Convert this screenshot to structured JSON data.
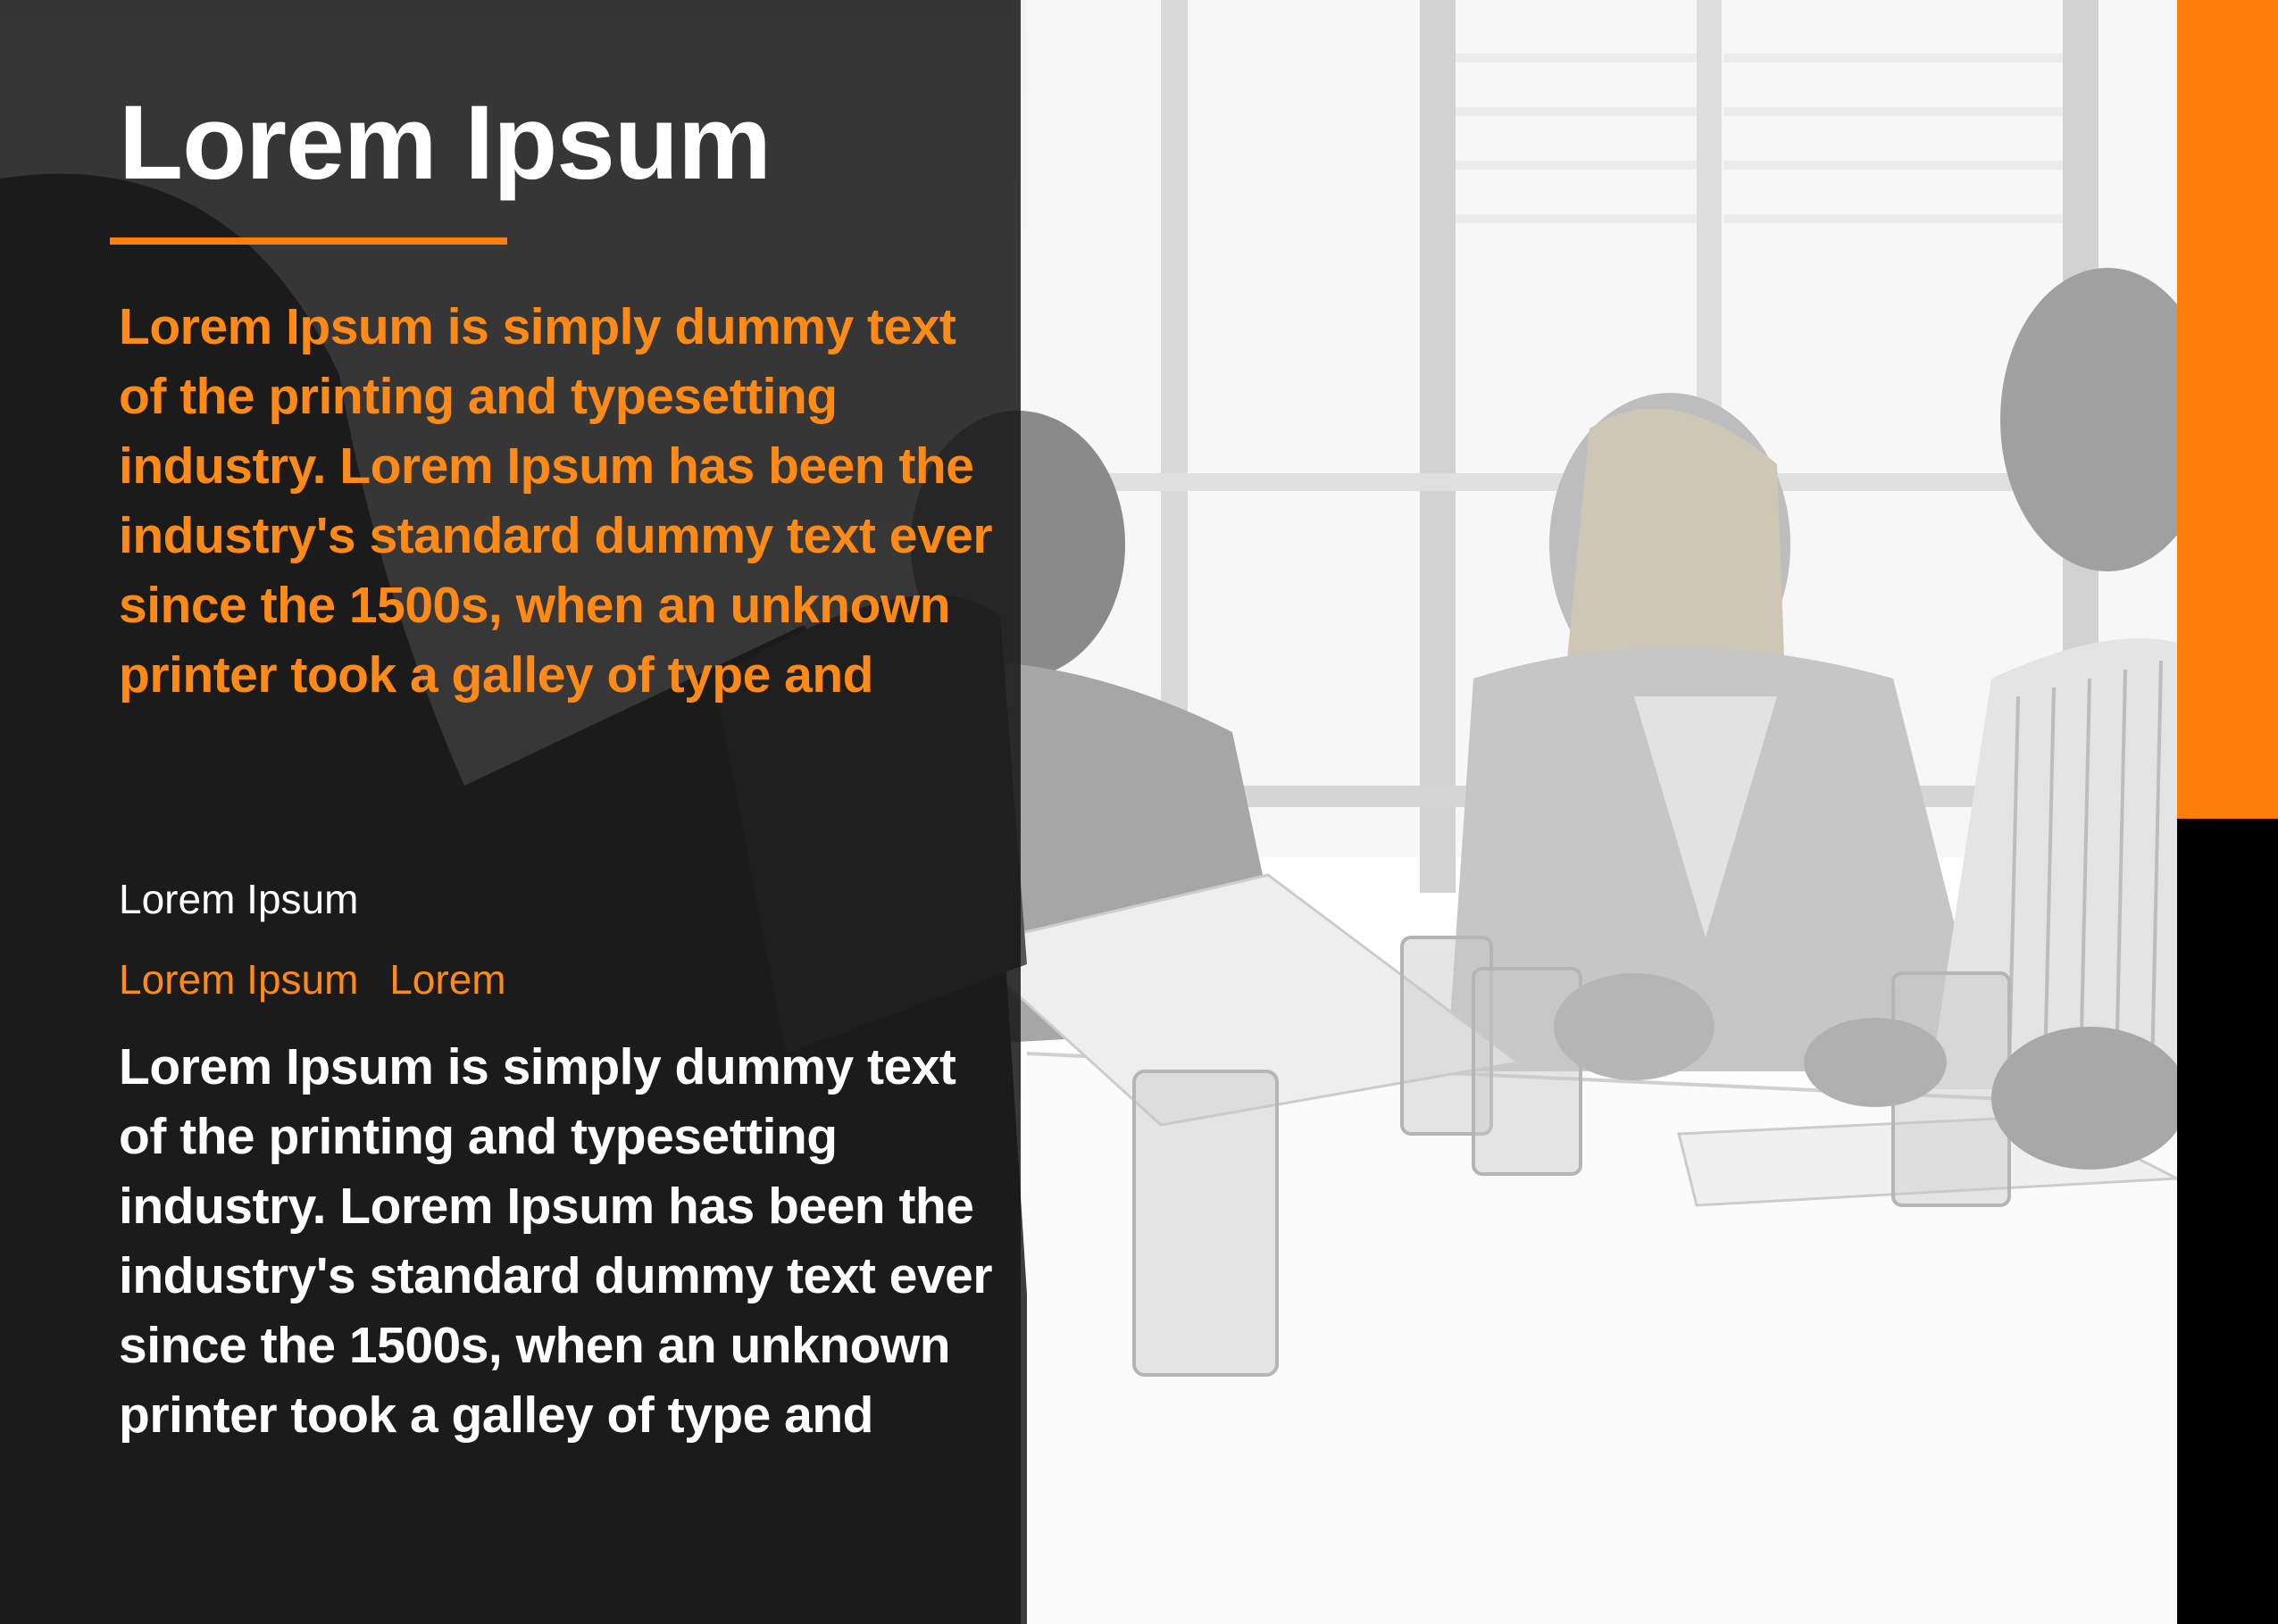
{
  "colors": {
    "accent": "#ff7f0e",
    "panel_overlay": "#161616",
    "text_light": "#ffffff"
  },
  "photo": {
    "icon": "meeting-photo"
  },
  "header": {
    "title": "Lorem Ipsum"
  },
  "intro": {
    "text": "Lorem Ipsum is simply dummy text of the printing and typesetting industry. Lorem Ipsum has been the industry's standard dummy text ever since the 1500s, when an unknown printer took a galley of type and"
  },
  "label": {
    "text": "Lorem Ipsum"
  },
  "links": {
    "items": [
      "Lorem Ipsum",
      "Lorem"
    ]
  },
  "body": {
    "text": "Lorem Ipsum is simply dummy text of the printing and typesetting industry. Lorem Ipsum has been the industry's standard dummy text ever since the 1500s, when an unknown printer took a galley of type and"
  }
}
